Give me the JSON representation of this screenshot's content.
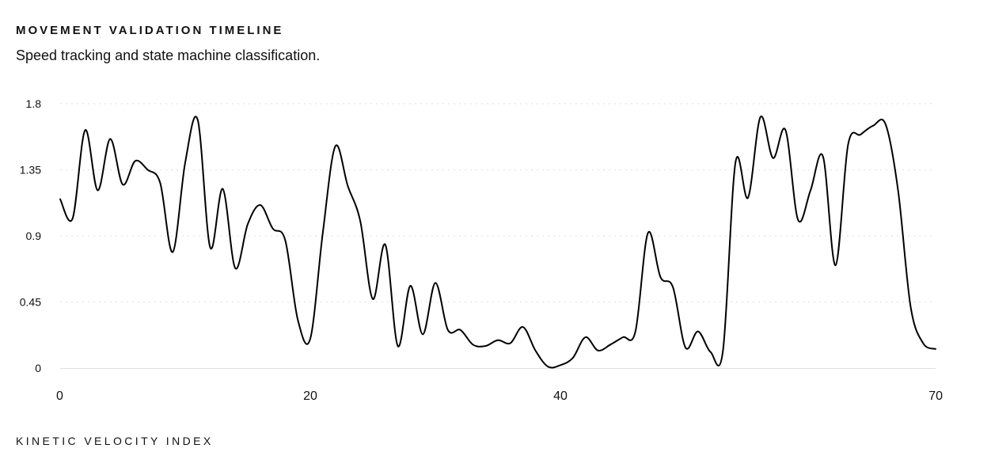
{
  "header": {
    "title": "MOVEMENT VALIDATION TIMELINE",
    "subtitle": "Speed tracking and state machine classification."
  },
  "footer": {
    "label": "KINETIC VELOCITY INDEX"
  },
  "colors": {
    "line": "#000000",
    "grid": "#e4e4e4",
    "axis": "#e0e0e0",
    "text": "#111111"
  },
  "chart_data": {
    "type": "line",
    "title": "",
    "xlabel": "",
    "ylabel": "",
    "xlim": [
      0,
      70
    ],
    "ylim": [
      0,
      1.8
    ],
    "x_ticks": [
      "0",
      "20",
      "40",
      "70"
    ],
    "y_ticks": [
      "0",
      "0.45",
      "0.9",
      "1.35",
      "1.8"
    ],
    "grid": "horizontal-dotted",
    "series": [
      {
        "values": [
          [
            0,
            1.15
          ],
          [
            1,
            1.02
          ],
          [
            2,
            1.62
          ],
          [
            3,
            1.21
          ],
          [
            4,
            1.56
          ],
          [
            5,
            1.25
          ],
          [
            6,
            1.41
          ],
          [
            7,
            1.35
          ],
          [
            8,
            1.26
          ],
          [
            9,
            0.79
          ],
          [
            10,
            1.4
          ],
          [
            11,
            1.69
          ],
          [
            12,
            0.82
          ],
          [
            13,
            1.22
          ],
          [
            14,
            0.68
          ],
          [
            15,
            0.98
          ],
          [
            16,
            1.11
          ],
          [
            17,
            0.95
          ],
          [
            18,
            0.87
          ],
          [
            19,
            0.33
          ],
          [
            20,
            0.2
          ],
          [
            21,
            0.92
          ],
          [
            22,
            1.51
          ],
          [
            23,
            1.24
          ],
          [
            24,
            1.0
          ],
          [
            25,
            0.47
          ],
          [
            26,
            0.84
          ],
          [
            27,
            0.15
          ],
          [
            28,
            0.56
          ],
          [
            29,
            0.23
          ],
          [
            30,
            0.58
          ],
          [
            31,
            0.26
          ],
          [
            32,
            0.26
          ],
          [
            33,
            0.16
          ],
          [
            34,
            0.15
          ],
          [
            35,
            0.19
          ],
          [
            36,
            0.17
          ],
          [
            37,
            0.28
          ],
          [
            38,
            0.12
          ],
          [
            39,
            0.01
          ],
          [
            40,
            0.02
          ],
          [
            41,
            0.07
          ],
          [
            42,
            0.21
          ],
          [
            43,
            0.12
          ],
          [
            44,
            0.16
          ],
          [
            45,
            0.21
          ],
          [
            46,
            0.25
          ],
          [
            47,
            0.92
          ],
          [
            48,
            0.62
          ],
          [
            49,
            0.55
          ],
          [
            50,
            0.14
          ],
          [
            51,
            0.25
          ],
          [
            52,
            0.11
          ],
          [
            53,
            0.12
          ],
          [
            54,
            1.4
          ],
          [
            55,
            1.16
          ],
          [
            56,
            1.71
          ],
          [
            57,
            1.43
          ],
          [
            58,
            1.62
          ],
          [
            59,
            1.01
          ],
          [
            60,
            1.21
          ],
          [
            61,
            1.44
          ],
          [
            62,
            0.7
          ],
          [
            63,
            1.52
          ],
          [
            64,
            1.59
          ],
          [
            65,
            1.65
          ],
          [
            66,
            1.66
          ],
          [
            67,
            1.21
          ],
          [
            68,
            0.42
          ],
          [
            69,
            0.17
          ],
          [
            70,
            0.13
          ]
        ]
      }
    ]
  }
}
